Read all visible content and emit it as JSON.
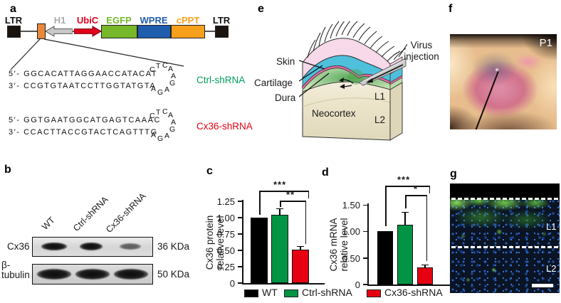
{
  "panel_labels": {
    "a": "a",
    "b": "b",
    "c": "c",
    "d": "d",
    "e": "e",
    "f": "f",
    "g": "g"
  },
  "a": {
    "construct": {
      "ltr_left": "LTR",
      "h1": "H1",
      "ubic": "UbiC",
      "egfp": "EGFP",
      "wpre": "WPRE",
      "cppt": "cPPT",
      "ltr_right": "LTR"
    },
    "construct_colors": {
      "ltr": "#1b140e",
      "h1_text": "#ababab",
      "h1_fill": "#c9c9c9",
      "ubic": "#e2001a",
      "egfp": "#76b82a",
      "wpre": "#1f5dad",
      "cppt": "#f6a01c",
      "insert": "#e8893a"
    },
    "shrnas": [
      {
        "strand5": "5′- GGCACATTAGGAACCATACAT",
        "strand3": "3′- CCGTGTAATCCTTGGTATGTA",
        "loop": [
          "C",
          "T",
          "C",
          "A",
          "A",
          "G",
          "A",
          "G",
          "A"
        ],
        "label": "Ctrl-shRNA",
        "color": "#00a05a"
      },
      {
        "strand5": "5′- GGTGAATGGCATGAGTCAAAC",
        "strand3": "3′- CCACTTACCGTACTCAGTTTG",
        "loop": [
          "C",
          "T",
          "C",
          "A",
          "A",
          "G",
          "A",
          "G",
          "A"
        ],
        "label": "Cx36-shRNA",
        "color": "#e60012"
      }
    ]
  },
  "b": {
    "lanes": [
      "WT",
      "Ctrl-shRNA",
      "Cx36-shRNA"
    ],
    "rows": [
      {
        "protein": "Cx36",
        "mw": "36 KDa"
      },
      {
        "protein": "β-tubulin",
        "mw": "50 KDa"
      }
    ]
  },
  "e": {
    "labels": {
      "skin": "Skin",
      "cartilage": "Cartilage",
      "dura": "Dura",
      "neocortex": "Neocortex",
      "l1": "L1",
      "l2": "L2",
      "virus": "Virus injection"
    }
  },
  "f": {
    "tag": "P1"
  },
  "g": {
    "l1": "L1",
    "l2": "L2"
  },
  "legend": {
    "items": [
      {
        "label": "WT",
        "color": "#000000"
      },
      {
        "label": "Ctrl-shRNA",
        "color": "#009444"
      },
      {
        "label": "Cx36-shRNA",
        "color": "#e60012"
      }
    ]
  },
  "chart_data": [
    {
      "type": "bar",
      "panel": "c",
      "title": "",
      "ylabel": "Cx36 protein relative level",
      "ylabel_lines": [
        "Cx36 protein",
        "relative level"
      ],
      "categories": [
        "WT",
        "Ctrl-shRNA",
        "Cx36-shRNA"
      ],
      "values": [
        1.0,
        1.04,
        0.51
      ],
      "errors": [
        0,
        0.1,
        0.06
      ],
      "colors": [
        "#000000",
        "#009444",
        "#e60012"
      ],
      "ylim": [
        0,
        1.25
      ],
      "yticks": [
        0,
        0.25,
        0.5,
        0.75,
        1,
        1.25
      ],
      "ytick_labels": [
        "0",
        "0.25",
        "0.50",
        "0.75",
        "1.00",
        "1.25"
      ],
      "grid": false,
      "legend_position": "bottom",
      "significance": [
        {
          "pair": [
            "WT",
            "Cx36-shRNA"
          ],
          "label": "***"
        },
        {
          "pair": [
            "Ctrl-shRNA",
            "Cx36-shRNA"
          ],
          "label": "**"
        }
      ]
    },
    {
      "type": "bar",
      "panel": "d",
      "title": "",
      "ylabel": "Cx36 mRNA relative level",
      "ylabel_lines": [
        "Cx36 mRNA",
        "relative level"
      ],
      "categories": [
        "WT",
        "Ctrl-shRNA",
        "Cx36-shRNA"
      ],
      "values": [
        1.0,
        1.12,
        0.32
      ],
      "errors": [
        0,
        0.25,
        0.06
      ],
      "colors": [
        "#000000",
        "#009444",
        "#e60012"
      ],
      "ylim": [
        0,
        1.5
      ],
      "yticks": [
        0,
        0.5,
        1,
        1.5
      ],
      "ytick_labels": [
        "0",
        "0.50",
        "1.00",
        "1.50"
      ],
      "grid": false,
      "legend_position": "bottom",
      "significance": [
        {
          "pair": [
            "WT",
            "Cx36-shRNA"
          ],
          "label": "***"
        },
        {
          "pair": [
            "Ctrl-shRNA",
            "Cx36-shRNA"
          ],
          "label": "*"
        }
      ]
    }
  ]
}
